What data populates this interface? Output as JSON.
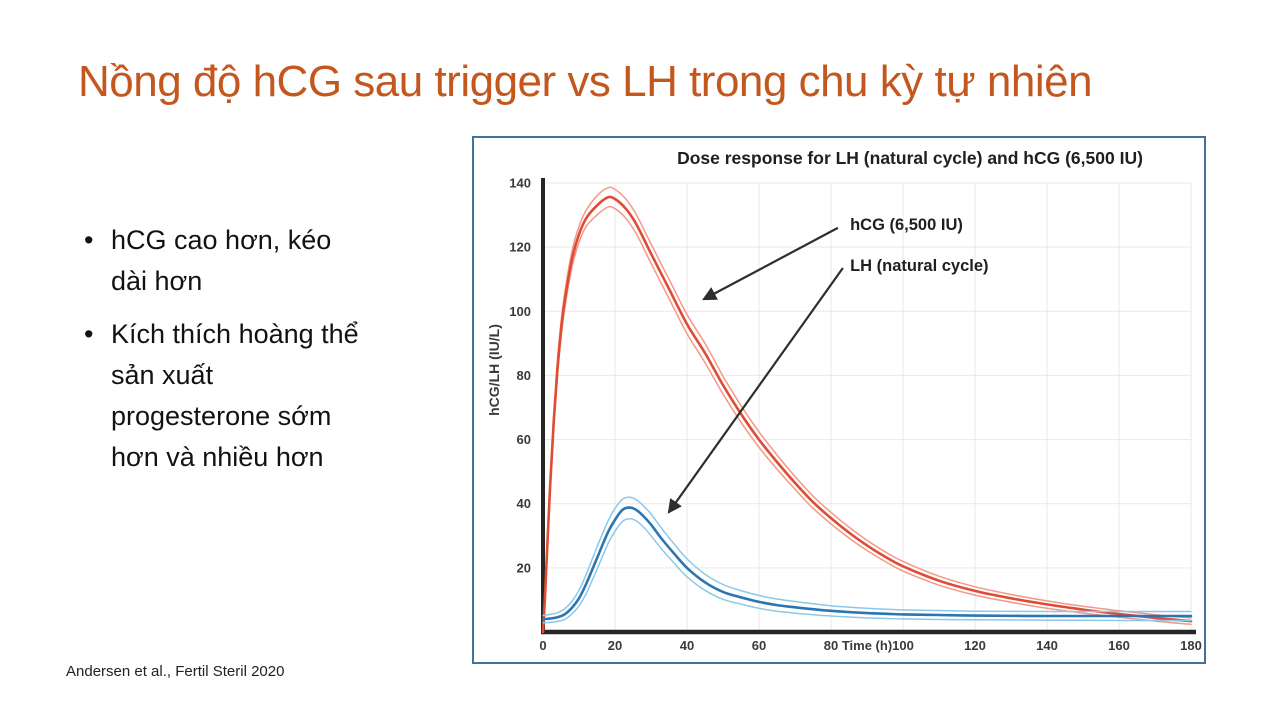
{
  "slide": {
    "title": "Nồng độ hCG sau trigger vs LH trong chu kỳ tự nhiên",
    "title_color": "#C4571D",
    "bullet_char": "•",
    "bullets": [
      "hCG cao hơn, kéo\ndài hơn",
      "Kích thích hoàng thể\nsản xuất\nprogesterone sớm\nhơn và nhiều hơn"
    ],
    "citation": "Andersen et al., Fertil Steril 2020",
    "figure_border_color": "#41719C"
  },
  "chart_data": {
    "type": "line",
    "title": "Dose response for LH (natural cycle) and hCG (6,500 IU)",
    "xlabel": "Time (h)",
    "xlabel_position": "inline between the 80 and 100 ticks",
    "ylabel": "hCG/LH  (IU/L)",
    "xlim": [
      0,
      180
    ],
    "ylim": [
      0,
      140
    ],
    "x_ticks": [
      0,
      20,
      40,
      60,
      80,
      100,
      120,
      140,
      160,
      180
    ],
    "y_ticks": [
      20,
      40,
      60,
      80,
      100,
      120,
      140
    ],
    "grid": true,
    "grid_color": "#e9e9e9",
    "axis_color": "#262626",
    "series": [
      {
        "name": "hCG (6,500 IU) upper CI",
        "color": "#F2998A",
        "width": 1.5,
        "x": [
          0,
          0.5,
          1,
          2,
          3,
          4,
          5,
          6,
          8,
          10,
          12,
          15,
          18,
          20,
          23,
          26,
          30,
          35,
          40,
          45,
          50,
          55,
          60,
          65,
          70,
          75,
          80,
          85,
          90,
          95,
          100,
          110,
          120,
          130,
          140,
          150,
          160,
          170,
          180
        ],
        "y": [
          0,
          10.5,
          23,
          47.5,
          68,
          84.5,
          96.5,
          105.5,
          118.5,
          126.5,
          131.5,
          136,
          138.5,
          138,
          135,
          130,
          121,
          110,
          99,
          90,
          79.8,
          70.6,
          62.4,
          55.2,
          48.5,
          42.4,
          37.3,
          32.7,
          28.6,
          25,
          22,
          17.4,
          14.1,
          11.7,
          9.7,
          8,
          6.6,
          5.4,
          4.4
        ]
      },
      {
        "name": "hCG (6,500 IU) lower CI",
        "color": "#F2998A",
        "width": 1.5,
        "x": [
          0,
          0.5,
          1,
          2,
          3,
          4,
          5,
          6,
          8,
          10,
          12,
          15,
          18,
          20,
          23,
          26,
          30,
          35,
          40,
          45,
          50,
          55,
          60,
          65,
          70,
          75,
          80,
          85,
          90,
          95,
          100,
          110,
          120,
          130,
          140,
          150,
          160,
          170,
          180
        ],
        "y": [
          0,
          9.5,
          21,
          44.5,
          64,
          79.5,
          91.5,
          100.5,
          113.5,
          121.5,
          126.5,
          130,
          132.5,
          132,
          129,
          124,
          115,
          104,
          93,
          84,
          74.2,
          65.4,
          57.6,
          50.8,
          44.5,
          38.6,
          33.7,
          29.3,
          25.4,
          22,
          19,
          14.6,
          11.5,
          9.3,
          7.4,
          5.9,
          4.6,
          3.4,
          2.4
        ]
      },
      {
        "name": "hCG (6,500 IU) mean",
        "color": "#DF4B33",
        "width": 2.6,
        "x": [
          0,
          0.5,
          1,
          2,
          3,
          4,
          5,
          6,
          8,
          10,
          12,
          15,
          18,
          20,
          23,
          26,
          30,
          35,
          40,
          45,
          50,
          55,
          60,
          65,
          70,
          75,
          80,
          85,
          90,
          95,
          100,
          110,
          120,
          130,
          140,
          150,
          160,
          170,
          180
        ],
        "y": [
          0,
          10,
          22,
          46,
          66,
          82,
          94,
          103,
          116,
          124,
          129,
          133,
          135.5,
          135,
          132,
          127,
          118,
          107,
          96,
          87,
          77,
          68,
          60,
          53,
          46.5,
          40.5,
          35.5,
          31,
          27,
          23.5,
          20.5,
          16,
          12.8,
          10.5,
          8.6,
          7,
          5.6,
          4.4,
          3.4
        ]
      },
      {
        "name": "LH (natural cycle) upper CI",
        "color": "#8CC8E8",
        "width": 1.5,
        "x": [
          0,
          2,
          4,
          6,
          8,
          10,
          12,
          15,
          18,
          20,
          22,
          24,
          26,
          28,
          30,
          33,
          36,
          40,
          45,
          50,
          55,
          60,
          65,
          70,
          75,
          80,
          90,
          100,
          110,
          120,
          140,
          160,
          180
        ],
        "y": [
          5.2,
          5.5,
          6,
          7.2,
          9.5,
          13,
          18,
          26.5,
          34.5,
          38.5,
          41.3,
          42,
          41.2,
          39.2,
          36.8,
          32.2,
          28,
          22.8,
          18,
          14.8,
          12.9,
          11.4,
          10.3,
          9.5,
          8.8,
          8.2,
          7.4,
          6.9,
          6.7,
          6.5,
          6.4,
          6.4,
          6.4
        ]
      },
      {
        "name": "LH (natural cycle) lower CI",
        "color": "#8CC8E8",
        "width": 1.5,
        "x": [
          0,
          2,
          4,
          6,
          8,
          10,
          12,
          15,
          18,
          20,
          22,
          24,
          26,
          28,
          30,
          33,
          36,
          40,
          45,
          50,
          55,
          60,
          65,
          70,
          75,
          80,
          90,
          100,
          110,
          120,
          140,
          160,
          180
        ],
        "y": [
          2.9,
          3,
          3.3,
          3.9,
          5.6,
          8.1,
          12,
          19.5,
          27.4,
          31.4,
          34.4,
          35.3,
          34.6,
          32.6,
          30,
          25.8,
          22,
          17.2,
          13,
          10.2,
          8.7,
          7.4,
          6.5,
          5.9,
          5.4,
          5,
          4.4,
          4.1,
          3.9,
          3.8,
          3.7,
          3.6,
          3.6
        ]
      },
      {
        "name": "LH (natural cycle) mean",
        "color": "#2B76B2",
        "width": 2.6,
        "x": [
          0,
          2,
          4,
          6,
          8,
          10,
          12,
          15,
          18,
          20,
          22,
          24,
          26,
          28,
          30,
          33,
          36,
          40,
          45,
          50,
          55,
          60,
          65,
          70,
          75,
          80,
          90,
          100,
          110,
          120,
          140,
          160,
          180
        ],
        "y": [
          4,
          4.2,
          4.6,
          5.5,
          7.5,
          10.5,
          15,
          23,
          31,
          35,
          38,
          38.8,
          38,
          36,
          33.5,
          29,
          25,
          20,
          15.5,
          12.5,
          10.8,
          9.4,
          8.4,
          7.7,
          7.1,
          6.6,
          5.9,
          5.5,
          5.3,
          5.1,
          5,
          5,
          5
        ]
      }
    ],
    "annotations": [
      {
        "label": "hCG (6,500 IU)",
        "text_h": 85.3,
        "text_v": 126.9,
        "line": [
          81.9,
          126.0,
          44.7,
          103.8
        ]
      },
      {
        "label": "LH (natural cycle)",
        "text_h": 85.3,
        "text_v": 114.1,
        "line": [
          83.3,
          113.5,
          35.0,
          37.4
        ]
      }
    ],
    "legend_position": "annotated arrows inside plot, upper right"
  }
}
